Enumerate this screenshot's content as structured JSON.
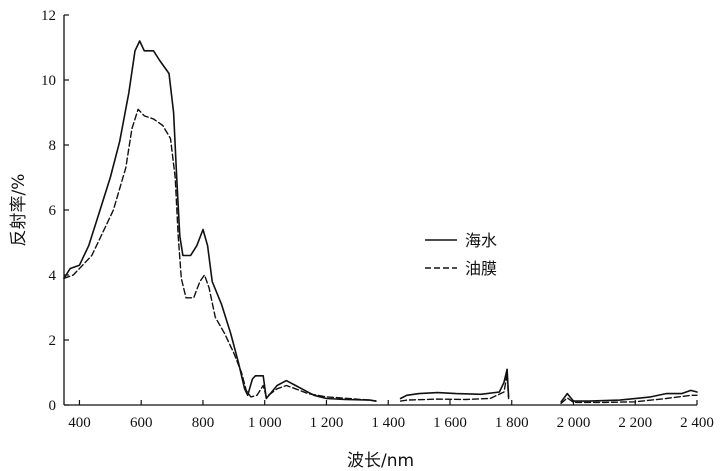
{
  "chart_data": {
    "type": "line",
    "xlabel": "波长/nm",
    "ylabel": "反射率/%",
    "xlim": [
      350,
      2400
    ],
    "ylim": [
      0,
      12
    ],
    "x_ticks": [
      400,
      600,
      800,
      1000,
      1200,
      1400,
      1600,
      1800,
      2000,
      2200,
      2400
    ],
    "x_tick_labels": [
      "400",
      "600",
      "800",
      "1 000",
      "1 200",
      "1 400",
      "1 600",
      "1 800",
      "2 000",
      "2 200",
      "2 400"
    ],
    "y_ticks": [
      0,
      2,
      4,
      6,
      8,
      10,
      12
    ],
    "y_tick_labels": [
      "0",
      "2",
      "4",
      "6",
      "8",
      "10",
      "12"
    ],
    "grid": false,
    "legend": "center-right",
    "series": [
      {
        "name": "海水",
        "style": "solid",
        "segments": [
          [
            [
              350,
              3.9
            ],
            [
              370,
              4.2
            ],
            [
              400,
              4.3
            ],
            [
              430,
              4.9
            ],
            [
              460,
              5.8
            ],
            [
              500,
              7.0
            ],
            [
              530,
              8.1
            ],
            [
              560,
              9.6
            ],
            [
              580,
              10.9
            ],
            [
              595,
              11.2
            ],
            [
              610,
              10.9
            ],
            [
              640,
              10.9
            ],
            [
              660,
              10.6
            ],
            [
              690,
              10.2
            ],
            [
              705,
              9.0
            ],
            [
              715,
              7.0
            ],
            [
              725,
              5.2
            ],
            [
              735,
              4.6
            ],
            [
              760,
              4.6
            ],
            [
              780,
              4.9
            ],
            [
              800,
              5.4
            ],
            [
              815,
              4.9
            ],
            [
              830,
              3.8
            ],
            [
              860,
              3.1
            ],
            [
              890,
              2.2
            ],
            [
              915,
              1.3
            ],
            [
              935,
              0.5
            ],
            [
              945,
              0.3
            ],
            [
              960,
              0.8
            ],
            [
              970,
              0.9
            ],
            [
              995,
              0.9
            ],
            [
              1005,
              0.2
            ],
            [
              1040,
              0.6
            ],
            [
              1070,
              0.75
            ],
            [
              1100,
              0.6
            ],
            [
              1130,
              0.45
            ],
            [
              1160,
              0.3
            ],
            [
              1200,
              0.2
            ],
            [
              1260,
              0.17
            ],
            [
              1340,
              0.15
            ],
            [
              1360,
              0.12
            ]
          ],
          [
            [
              1440,
              0.2
            ],
            [
              1460,
              0.3
            ],
            [
              1500,
              0.35
            ],
            [
              1560,
              0.38
            ],
            [
              1620,
              0.35
            ],
            [
              1700,
              0.33
            ],
            [
              1760,
              0.4
            ],
            [
              1775,
              0.7
            ],
            [
              1785,
              1.1
            ],
            [
              1790,
              0.25
            ]
          ],
          [
            [
              1960,
              0.1
            ],
            [
              1980,
              0.35
            ],
            [
              2000,
              0.12
            ],
            [
              2050,
              0.12
            ],
            [
              2150,
              0.15
            ],
            [
              2250,
              0.25
            ],
            [
              2300,
              0.35
            ],
            [
              2350,
              0.35
            ],
            [
              2380,
              0.45
            ],
            [
              2400,
              0.4
            ]
          ]
        ]
      },
      {
        "name": "油膜",
        "style": "dashed",
        "segments": [
          [
            [
              350,
              3.9
            ],
            [
              380,
              4.0
            ],
            [
              410,
              4.3
            ],
            [
              440,
              4.6
            ],
            [
              470,
              5.2
            ],
            [
              510,
              6.0
            ],
            [
              550,
              7.3
            ],
            [
              570,
              8.5
            ],
            [
              590,
              9.1
            ],
            [
              610,
              8.9
            ],
            [
              640,
              8.8
            ],
            [
              670,
              8.6
            ],
            [
              695,
              8.2
            ],
            [
              710,
              7.0
            ],
            [
              720,
              5.2
            ],
            [
              730,
              3.9
            ],
            [
              745,
              3.3
            ],
            [
              770,
              3.3
            ],
            [
              790,
              3.8
            ],
            [
              805,
              4.0
            ],
            [
              820,
              3.6
            ],
            [
              840,
              2.7
            ],
            [
              870,
              2.2
            ],
            [
              900,
              1.6
            ],
            [
              925,
              1.0
            ],
            [
              940,
              0.45
            ],
            [
              955,
              0.25
            ],
            [
              975,
              0.3
            ],
            [
              995,
              0.6
            ],
            [
              1005,
              0.25
            ],
            [
              1040,
              0.5
            ],
            [
              1070,
              0.6
            ],
            [
              1100,
              0.5
            ],
            [
              1140,
              0.35
            ],
            [
              1200,
              0.25
            ],
            [
              1270,
              0.2
            ],
            [
              1340,
              0.15
            ],
            [
              1360,
              0.12
            ]
          ],
          [
            [
              1440,
              0.12
            ],
            [
              1460,
              0.15
            ],
            [
              1560,
              0.18
            ],
            [
              1650,
              0.17
            ],
            [
              1730,
              0.2
            ],
            [
              1775,
              0.4
            ],
            [
              1785,
              0.95
            ],
            [
              1790,
              0.2
            ]
          ],
          [
            [
              1960,
              0.05
            ],
            [
              1980,
              0.22
            ],
            [
              2000,
              0.08
            ],
            [
              2100,
              0.08
            ],
            [
              2200,
              0.1
            ],
            [
              2300,
              0.2
            ],
            [
              2380,
              0.3
            ],
            [
              2400,
              0.3
            ]
          ]
        ]
      }
    ]
  }
}
